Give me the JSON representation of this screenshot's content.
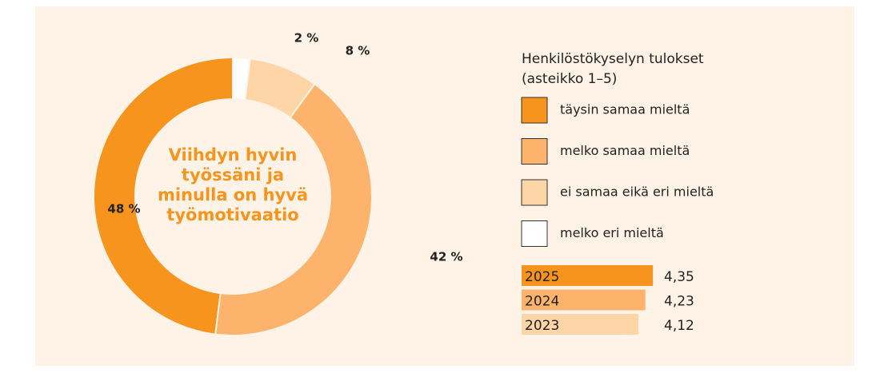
{
  "chart_data": [
    {
      "type": "pie",
      "title": "Viihdyn hyvin työssäni ja minulla on hyvä työmotivaatio",
      "legend_title": "Henkilöstökyselyn tulokset (asteikko 1–5)",
      "categories": [
        "täysin samaa mieltä",
        "melko samaa mieltä",
        "ei samaa eikä eri mieltä",
        "melko eri mieltä"
      ],
      "values": [
        48,
        42,
        8,
        2
      ],
      "value_labels": [
        "48 %",
        "42 %",
        "8 %",
        "2 %"
      ],
      "colors": [
        "#f7941d",
        "#fdb36b",
        "#fed5a6",
        "#ffffff"
      ],
      "direction": "counterclockwise"
    },
    {
      "type": "bar",
      "orientation": "horizontal",
      "categories": [
        "2025",
        "2024",
        "2023"
      ],
      "values": [
        4.35,
        4.23,
        4.12
      ],
      "value_labels": [
        "4,35",
        "4,23",
        "4,12"
      ],
      "colors": [
        "#f7941d",
        "#fdb36b",
        "#fed5a6"
      ],
      "xlim": [
        2.25,
        4.4
      ]
    }
  ]
}
